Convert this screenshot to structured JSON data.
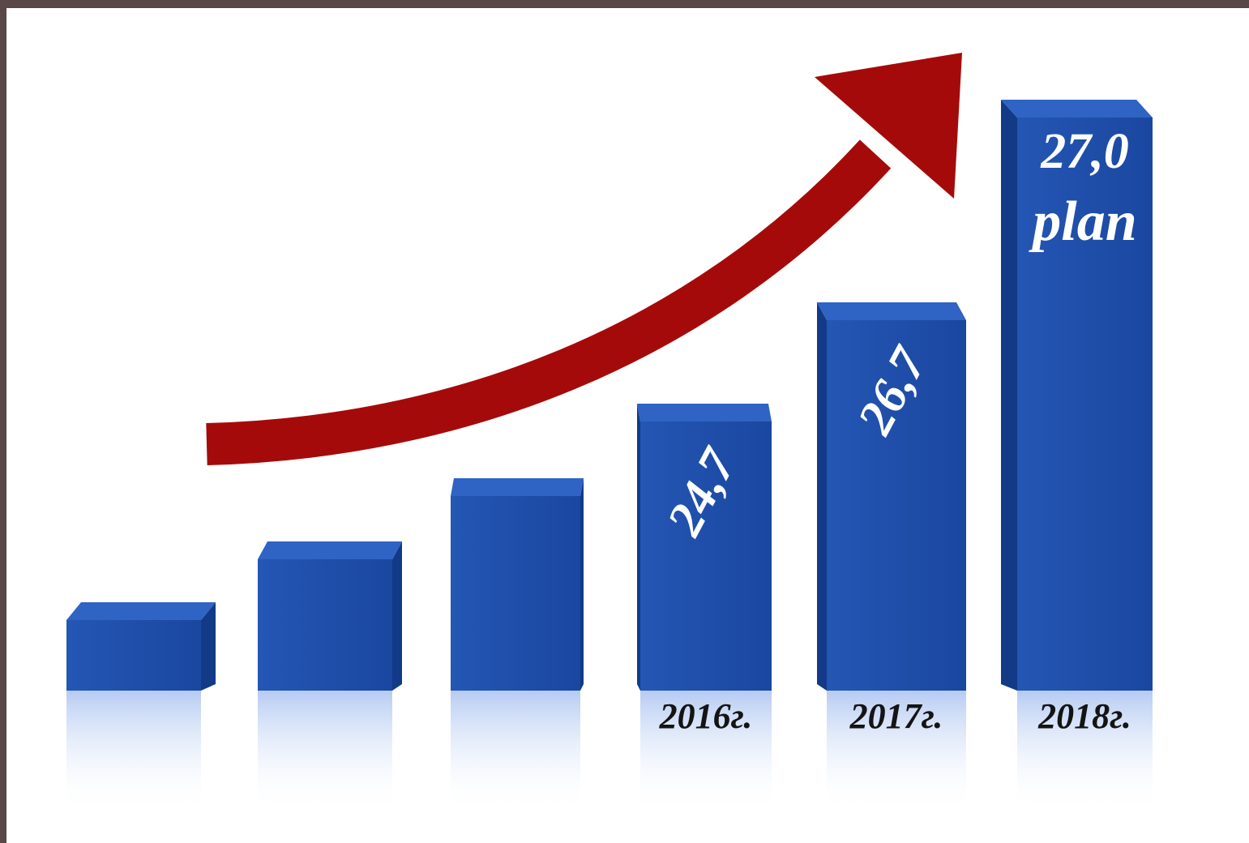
{
  "chart_data": {
    "type": "bar",
    "categories": [
      null,
      null,
      null,
      "2016г.",
      "2017г.",
      "2018г."
    ],
    "values": [
      null,
      null,
      null,
      24.7,
      26.7,
      27.0
    ],
    "value_labels": [
      null,
      null,
      null,
      "24,7",
      "26,7",
      "27,0"
    ],
    "annotation": "plan",
    "color": "#1f4fa8",
    "arrow_color": "#a50a0a"
  }
}
